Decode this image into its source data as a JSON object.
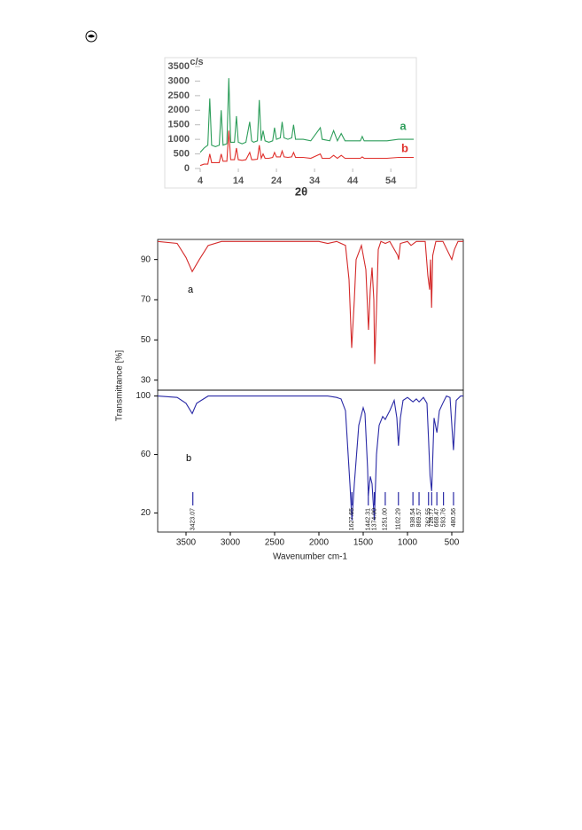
{
  "chart_data": [
    {
      "type": "line",
      "ylabel": "c/s",
      "xlabel": "2θ",
      "x": [
        4,
        5,
        6,
        6.5,
        7,
        8,
        9,
        9.5,
        10,
        11,
        11.5,
        12,
        13,
        13.5,
        14,
        15,
        16,
        17,
        17.5,
        18,
        19,
        19.5,
        20,
        20.5,
        21,
        22,
        23,
        23.5,
        24,
        25,
        25.5,
        26,
        27,
        28,
        28.5,
        29,
        31,
        33,
        35.5,
        36,
        38,
        39,
        40,
        41,
        42,
        44,
        46,
        46.5,
        47,
        50,
        53,
        56,
        60
      ],
      "series": [
        {
          "name": "a",
          "color": "#2e9e5b",
          "values": [
            550,
            700,
            800,
            2400,
            800,
            750,
            800,
            2000,
            800,
            850,
            3100,
            900,
            900,
            1800,
            900,
            850,
            900,
            1600,
            950,
            900,
            950,
            2350,
            950,
            1300,
            950,
            900,
            950,
            1400,
            1000,
            1050,
            1600,
            1050,
            1000,
            1050,
            1500,
            1000,
            1000,
            950,
            1400,
            1000,
            950,
            1300,
            950,
            1200,
            950,
            950,
            950,
            1100,
            950,
            950,
            950,
            1000,
            1000
          ]
        },
        {
          "name": "b",
          "color": "#e0302c",
          "values": [
            100,
            150,
            150,
            500,
            200,
            200,
            200,
            500,
            250,
            250,
            1300,
            300,
            300,
            700,
            300,
            280,
            300,
            550,
            300,
            300,
            320,
            800,
            350,
            500,
            350,
            350,
            380,
            550,
            400,
            400,
            600,
            400,
            380,
            400,
            550,
            380,
            380,
            350,
            500,
            350,
            350,
            450,
            350,
            450,
            350,
            350,
            350,
            400,
            350,
            350,
            350,
            380,
            380
          ]
        }
      ],
      "xlim": [
        4,
        60
      ],
      "xticks": [
        4,
        14,
        24,
        34,
        44,
        54
      ],
      "ylim": [
        0,
        3500
      ],
      "yticks": [
        0,
        500,
        1000,
        1500,
        2000,
        2500,
        3000,
        3500
      ]
    },
    {
      "type": "line",
      "x": [
        3820,
        3600,
        3500,
        3430,
        3350,
        3250,
        3100,
        2000,
        1900,
        1800,
        1700,
        1660,
        1630,
        1600,
        1580,
        1520,
        1470,
        1440,
        1420,
        1400,
        1380,
        1370,
        1350,
        1330,
        1300,
        1250,
        1200,
        1110,
        1100,
        1080,
        1000,
        960,
        900,
        800,
        770,
        750,
        740,
        728,
        715,
        680,
        600,
        500,
        470,
        430,
        370
      ],
      "series": [
        {
          "name": "a",
          "color": "#d42a2a",
          "values": [
            99,
            98,
            91,
            84,
            90,
            97,
            99,
            99,
            98,
            99,
            97,
            80,
            46,
            70,
            90,
            97,
            85,
            55,
            75,
            86,
            70,
            38,
            65,
            95,
            99,
            98,
            99,
            92,
            90,
            98,
            99,
            97,
            99,
            99,
            82,
            75,
            90,
            66,
            92,
            99,
            99,
            90,
            95,
            99,
            99
          ]
        }
      ],
      "xlim": [
        3820,
        370
      ],
      "ylim": [
        25,
        100
      ],
      "yticks": [
        30,
        50,
        70,
        90
      ]
    },
    {
      "type": "line",
      "ylabel": "Transmittance [%]",
      "xlabel": "Wavenumber cm-1",
      "x": [
        3820,
        3600,
        3500,
        3430,
        3380,
        3250,
        2500,
        1900,
        1800,
        1750,
        1700,
        1650,
        1627,
        1600,
        1550,
        1500,
        1480,
        1450,
        1442,
        1420,
        1400,
        1390,
        1374,
        1350,
        1320,
        1280,
        1251,
        1200,
        1150,
        1120,
        1102,
        1080,
        1050,
        1000,
        938,
        900,
        869,
        820,
        780,
        762,
        745,
        727,
        700,
        668,
        640,
        594,
        560,
        520,
        481,
        450,
        400,
        370
      ],
      "series": [
        {
          "name": "b",
          "color": "#2a2aa6",
          "values": [
            100,
            99,
            95,
            88,
            95,
            100,
            100,
            100,
            99,
            98,
            90,
            40,
            15,
            40,
            80,
            92,
            88,
            50,
            32,
            45,
            40,
            30,
            15,
            60,
            80,
            86,
            84,
            90,
            97,
            85,
            66,
            85,
            97,
            99,
            96,
            98,
            96,
            99,
            95,
            70,
            45,
            35,
            85,
            75,
            90,
            96,
            100,
            99,
            63,
            97,
            100,
            100
          ]
        }
      ],
      "peaks": [
        3423.07,
        1627.65,
        1442.31,
        {
          "value": 1374.0,
          "label": "1374.00"
        },
        {
          "value": 1251.0,
          "label": "1251.00"
        },
        1102.29,
        938.54,
        869.57,
        762.55,
        726.77,
        668.47,
        593.76,
        480.56
      ],
      "xlim": [
        3820,
        370
      ],
      "xticks": [
        3500,
        3000,
        2500,
        2000,
        1500,
        1000,
        500
      ],
      "ylim": [
        7,
        104
      ],
      "yticks": [
        20,
        60,
        100
      ]
    }
  ]
}
